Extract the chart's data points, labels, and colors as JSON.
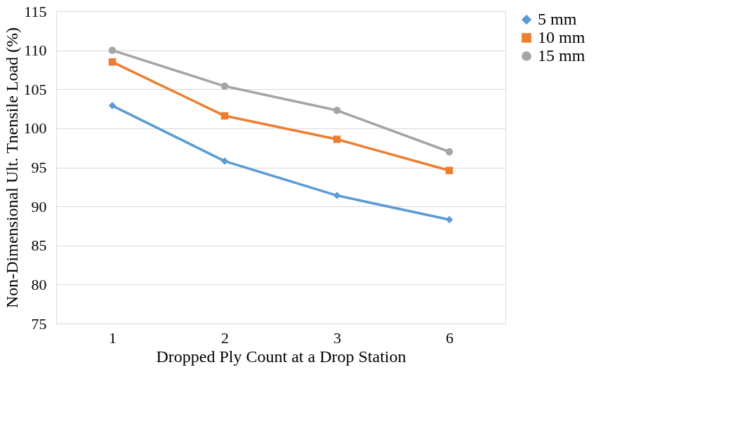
{
  "chart_data": {
    "type": "line",
    "xlabel": "Dropped Ply Count at a Drop Station",
    "ylabel": "Non-Dimensional Ult. Tnensile Load (%)",
    "categories": [
      "1",
      "2",
      "3",
      "6"
    ],
    "series": [
      {
        "name": "5 mm",
        "color": "#5b9bd5",
        "marker": "diamond",
        "values": [
          102.9,
          95.8,
          91.4,
          88.3
        ]
      },
      {
        "name": "10 mm",
        "color": "#ed7d31",
        "marker": "square",
        "values": [
          108.5,
          101.6,
          98.6,
          94.6
        ]
      },
      {
        "name": "15 mm",
        "color": "#a5a5a5",
        "marker": "circle",
        "values": [
          110.0,
          105.4,
          102.3,
          97.0
        ]
      }
    ],
    "ylim": [
      75,
      115
    ],
    "yticks": [
      75,
      80,
      85,
      90,
      95,
      100,
      105,
      110,
      115
    ],
    "grid": "y",
    "legend": "right",
    "line_style": "solid"
  }
}
